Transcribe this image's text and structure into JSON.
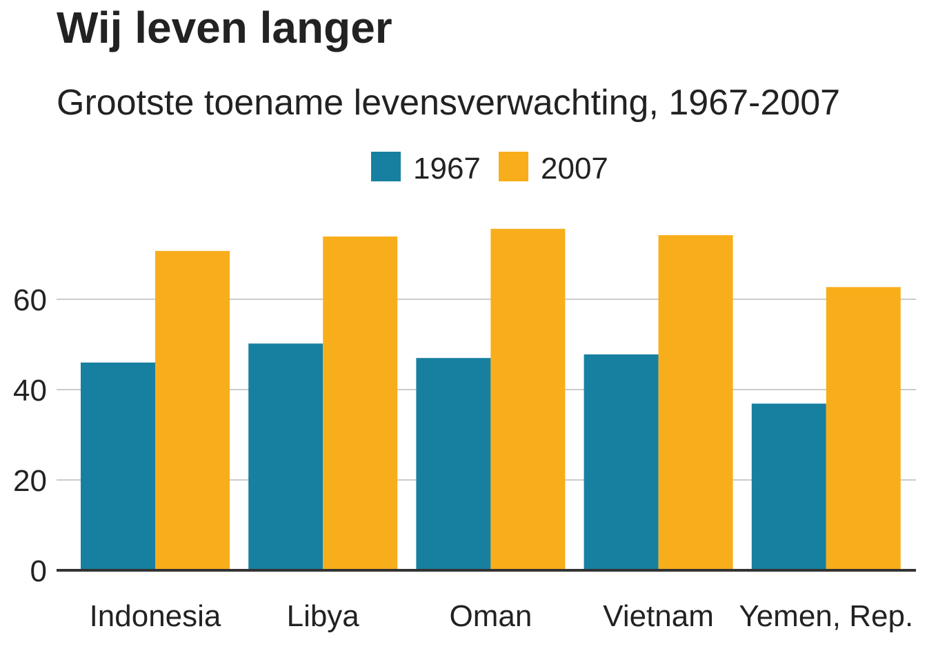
{
  "title": "Wij leven langer",
  "subtitle": "Grootste toename levensverwachting, 1967-2007",
  "chart_data": {
    "type": "bar",
    "title": "Wij leven langer",
    "subtitle": "Grootste toename levensverwachting, 1967-2007",
    "xlabel": "",
    "ylabel": "",
    "categories": [
      "Indonesia",
      "Libya",
      "Oman",
      "Vietnam",
      "Yemen, Rep."
    ],
    "series": [
      {
        "name": "1967",
        "color": "#1780a1",
        "values": [
          46.0,
          50.2,
          47.0,
          47.8,
          36.9
        ]
      },
      {
        "name": "2007",
        "color": "#f8ae1b",
        "values": [
          70.7,
          73.9,
          75.6,
          74.2,
          62.7
        ]
      }
    ],
    "yticks": [
      0,
      20,
      40,
      60
    ],
    "ylim": [
      0,
      80
    ],
    "grid": true,
    "legend_position": "top-center"
  }
}
